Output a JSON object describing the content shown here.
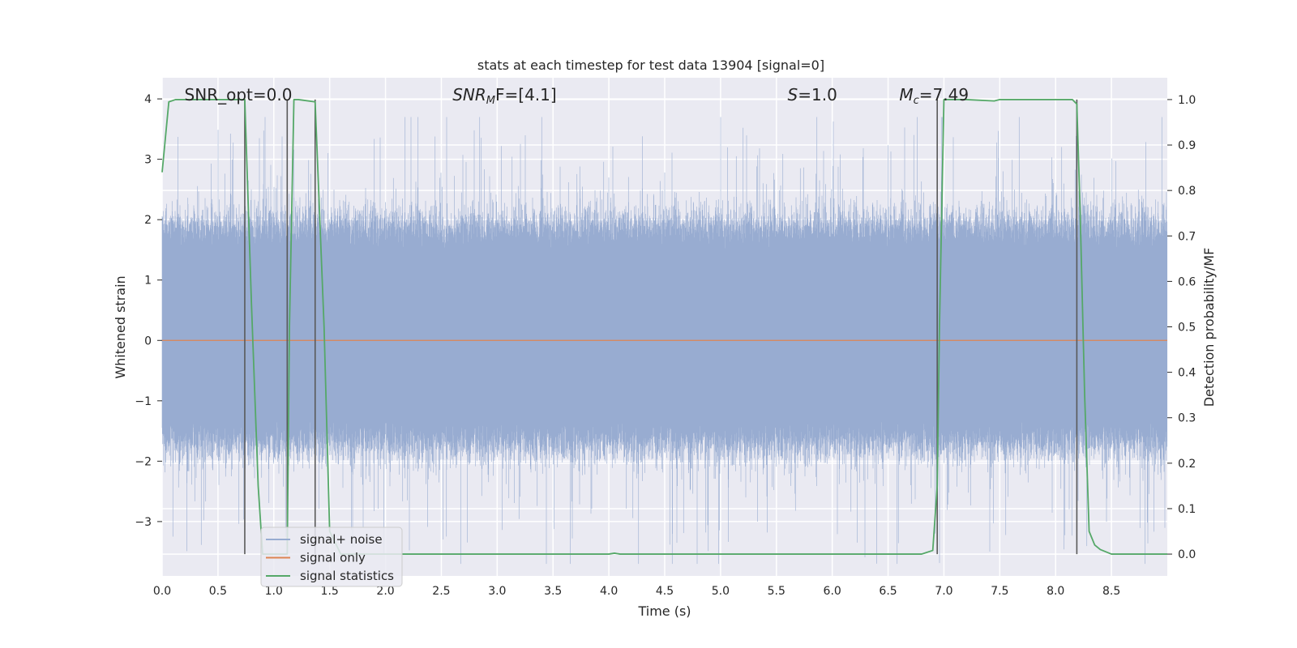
{
  "chart_data": {
    "type": "line",
    "title": "stats at each timestep for test data 13904 [signal=0]",
    "xlabel": "Time (s)",
    "ylabel": "Whitened strain",
    "y2label": "Detection probability/MF",
    "xlim": [
      0.0,
      9.0
    ],
    "ylim": [
      -3.9,
      4.35
    ],
    "y2lim": [
      -0.048,
      1.048
    ],
    "xticks": [
      "0.0",
      "0.5",
      "1.0",
      "1.5",
      "2.0",
      "2.5",
      "3.0",
      "3.5",
      "4.0",
      "4.5",
      "5.0",
      "5.5",
      "6.0",
      "6.5",
      "7.0",
      "7.5",
      "8.0",
      "8.5"
    ],
    "yticks": [
      "4",
      "3",
      "2",
      "1",
      "0",
      "−1",
      "−2",
      "−3"
    ],
    "y2ticks": [
      "1.0",
      "0.9",
      "0.8",
      "0.7",
      "0.6",
      "0.5",
      "0.4",
      "0.3",
      "0.2",
      "0.1",
      "0.0"
    ],
    "grid": true,
    "legend_position": "lower-left",
    "annotations": [
      {
        "text": "SNR_opt=0.0",
        "x": 0.2
      },
      {
        "text": "SNR",
        "sub": "M",
        "rest": "F=[4.1]",
        "italic": true,
        "x": 2.6
      },
      {
        "text": "S",
        "rest": "=1.0",
        "italic": true,
        "x": 5.6
      },
      {
        "text": "M",
        "sub": "c",
        "rest": "=7.49",
        "italic": true,
        "x": 6.6
      }
    ],
    "vlines_x": [
      0.74,
      1.12,
      1.37,
      6.94,
      8.19
    ],
    "series": [
      {
        "name": "signal+ noise",
        "color": "#98acd1",
        "kind": "noise",
        "sample_rate": 2048,
        "envelope": {
          "max_abs": 3.7,
          "bulk_top": 1.72,
          "bulk_bottom": -1.52,
          "seed": 13904
        }
      },
      {
        "name": "signal only",
        "color": "#dd8452",
        "x": [
          0.0,
          9.0
        ],
        "y": [
          0.0,
          0.0
        ]
      },
      {
        "name": "signal statistics",
        "color": "#55a868",
        "axis": "right",
        "x": [
          0.0,
          0.06,
          0.12,
          0.5,
          0.7,
          0.74,
          0.8,
          0.86,
          0.9,
          1.12,
          1.14,
          1.18,
          1.22,
          1.37,
          1.45,
          1.5,
          1.6,
          3.0,
          4.0,
          4.05,
          4.1,
          5.0,
          6.0,
          6.5,
          6.8,
          6.9,
          6.94,
          6.96,
          7.0,
          7.2,
          7.45,
          7.5,
          7.8,
          8.0,
          8.15,
          8.19,
          8.22,
          8.26,
          8.3,
          8.35,
          8.4,
          8.5,
          9.0
        ],
        "y": [
          0.84,
          0.995,
          1.0,
          1.0,
          1.0,
          1.0,
          0.55,
          0.15,
          0.0,
          0.0,
          0.5,
          1.0,
          1.0,
          0.995,
          0.5,
          0.05,
          0.0,
          0.0,
          0.0,
          0.002,
          0.0,
          0.0,
          0.0,
          0.0,
          0.0,
          0.008,
          0.15,
          0.5,
          1.0,
          1.0,
          0.997,
          1.0,
          1.0,
          1.0,
          1.0,
          0.99,
          0.75,
          0.35,
          0.05,
          0.02,
          0.01,
          0.0,
          0.0
        ]
      }
    ]
  }
}
